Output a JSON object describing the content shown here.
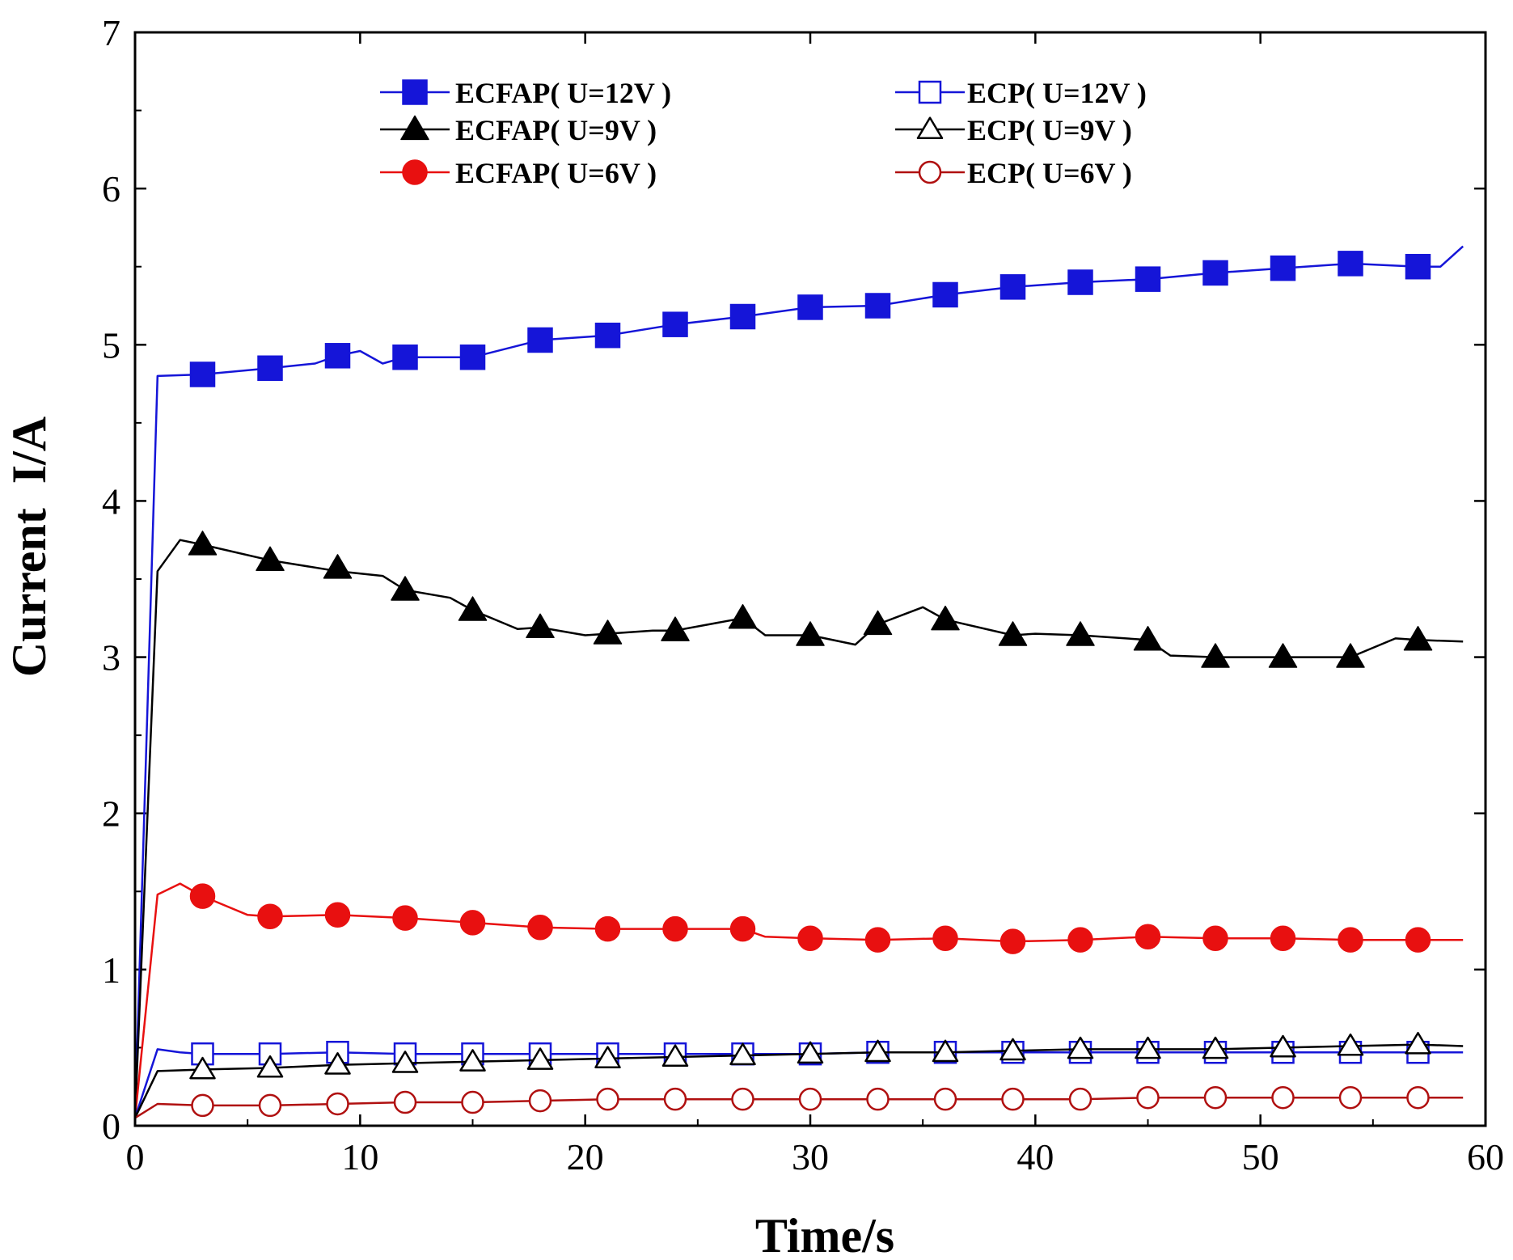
{
  "chart_data": {
    "type": "line",
    "title": "",
    "xlabel": "Time/s",
    "ylabel": "Current  I/A",
    "xlim": [
      0,
      60
    ],
    "ylim": [
      0,
      7
    ],
    "xticks": [
      0,
      10,
      20,
      30,
      40,
      50,
      60
    ],
    "yticks": [
      0,
      1,
      2,
      3,
      4,
      5,
      6,
      7
    ],
    "x_tick_labels": [
      "0",
      "10",
      "20",
      "30",
      "40",
      "50",
      "60"
    ],
    "y_tick_labels": [
      "0",
      "1",
      "2",
      "3",
      "4",
      "5",
      "6",
      "7"
    ],
    "grid": false,
    "legend_position": "top",
    "series": [
      {
        "name": "ECFAP( U=12V )",
        "color": "#1515d8",
        "marker": "square",
        "filled": true,
        "line": [
          [
            0,
            0.05
          ],
          [
            1,
            4.8
          ],
          [
            3,
            4.81
          ],
          [
            6,
            4.85
          ],
          [
            8,
            4.88
          ],
          [
            9,
            4.93
          ],
          [
            10,
            4.96
          ],
          [
            11,
            4.88
          ],
          [
            12,
            4.92
          ],
          [
            15,
            4.92
          ],
          [
            18,
            5.03
          ],
          [
            21,
            5.06
          ],
          [
            24,
            5.13
          ],
          [
            27,
            5.18
          ],
          [
            30,
            5.24
          ],
          [
            33,
            5.25
          ],
          [
            36,
            5.32
          ],
          [
            39,
            5.37
          ],
          [
            42,
            5.4
          ],
          [
            45,
            5.42
          ],
          [
            48,
            5.46
          ],
          [
            51,
            5.49
          ],
          [
            54,
            5.52
          ],
          [
            57,
            5.5
          ],
          [
            58,
            5.5
          ],
          [
            59,
            5.63
          ]
        ],
        "markers": [
          [
            3,
            4.81
          ],
          [
            6,
            4.85
          ],
          [
            9,
            4.93
          ],
          [
            12,
            4.92
          ],
          [
            15,
            4.92
          ],
          [
            18,
            5.03
          ],
          [
            21,
            5.06
          ],
          [
            24,
            5.13
          ],
          [
            27,
            5.18
          ],
          [
            30,
            5.24
          ],
          [
            33,
            5.25
          ],
          [
            36,
            5.32
          ],
          [
            39,
            5.37
          ],
          [
            42,
            5.4
          ],
          [
            45,
            5.42
          ],
          [
            48,
            5.46
          ],
          [
            51,
            5.49
          ],
          [
            54,
            5.52
          ],
          [
            57,
            5.5
          ]
        ]
      },
      {
        "name": "ECFAP( U=9V )",
        "color": "#000000",
        "marker": "triangle",
        "filled": true,
        "line": [
          [
            0,
            0.05
          ],
          [
            1,
            3.55
          ],
          [
            2,
            3.75
          ],
          [
            3,
            3.72
          ],
          [
            6,
            3.62
          ],
          [
            9,
            3.55
          ],
          [
            11,
            3.52
          ],
          [
            12,
            3.43
          ],
          [
            14,
            3.38
          ],
          [
            15,
            3.3
          ],
          [
            17,
            3.18
          ],
          [
            18,
            3.19
          ],
          [
            20,
            3.14
          ],
          [
            21,
            3.15
          ],
          [
            23,
            3.17
          ],
          [
            24,
            3.17
          ],
          [
            27,
            3.25
          ],
          [
            28,
            3.14
          ],
          [
            30,
            3.14
          ],
          [
            32,
            3.08
          ],
          [
            33,
            3.21
          ],
          [
            35,
            3.32
          ],
          [
            36,
            3.24
          ],
          [
            39,
            3.14
          ],
          [
            40,
            3.15
          ],
          [
            42,
            3.14
          ],
          [
            45,
            3.11
          ],
          [
            46,
            3.01
          ],
          [
            48,
            3.0
          ],
          [
            51,
            3.0
          ],
          [
            54,
            3.0
          ],
          [
            56,
            3.12
          ],
          [
            57,
            3.11
          ],
          [
            59,
            3.1
          ]
        ],
        "markers": [
          [
            3,
            3.72
          ],
          [
            6,
            3.62
          ],
          [
            9,
            3.57
          ],
          [
            12,
            3.43
          ],
          [
            15,
            3.3
          ],
          [
            18,
            3.19
          ],
          [
            21,
            3.15
          ],
          [
            24,
            3.17
          ],
          [
            27,
            3.25
          ],
          [
            30,
            3.14
          ],
          [
            33,
            3.21
          ],
          [
            36,
            3.24
          ],
          [
            39,
            3.14
          ],
          [
            42,
            3.14
          ],
          [
            45,
            3.11
          ],
          [
            48,
            3.0
          ],
          [
            51,
            3.0
          ],
          [
            54,
            3.0
          ],
          [
            57,
            3.11
          ]
        ]
      },
      {
        "name": "ECFAP( U=6V )",
        "color": "#e81010",
        "marker": "circle",
        "filled": true,
        "line": [
          [
            0,
            0.05
          ],
          [
            1,
            1.48
          ],
          [
            2,
            1.55
          ],
          [
            3,
            1.47
          ],
          [
            5,
            1.35
          ],
          [
            6,
            1.34
          ],
          [
            9,
            1.35
          ],
          [
            12,
            1.33
          ],
          [
            15,
            1.3
          ],
          [
            18,
            1.27
          ],
          [
            21,
            1.26
          ],
          [
            24,
            1.26
          ],
          [
            27,
            1.26
          ],
          [
            28,
            1.21
          ],
          [
            30,
            1.2
          ],
          [
            33,
            1.19
          ],
          [
            36,
            1.2
          ],
          [
            39,
            1.18
          ],
          [
            42,
            1.19
          ],
          [
            45,
            1.21
          ],
          [
            48,
            1.2
          ],
          [
            51,
            1.2
          ],
          [
            54,
            1.19
          ],
          [
            57,
            1.19
          ],
          [
            59,
            1.19
          ]
        ],
        "markers": [
          [
            3,
            1.47
          ],
          [
            6,
            1.34
          ],
          [
            9,
            1.35
          ],
          [
            12,
            1.33
          ],
          [
            15,
            1.3
          ],
          [
            18,
            1.27
          ],
          [
            21,
            1.26
          ],
          [
            24,
            1.26
          ],
          [
            27,
            1.26
          ],
          [
            30,
            1.2
          ],
          [
            33,
            1.19
          ],
          [
            36,
            1.2
          ],
          [
            39,
            1.18
          ],
          [
            42,
            1.19
          ],
          [
            45,
            1.21
          ],
          [
            48,
            1.2
          ],
          [
            51,
            1.2
          ],
          [
            54,
            1.19
          ],
          [
            57,
            1.19
          ]
        ]
      },
      {
        "name": "ECP( U=12V )",
        "color": "#1515d8",
        "marker": "square",
        "filled": false,
        "line": [
          [
            0,
            0.05
          ],
          [
            1,
            0.49
          ],
          [
            2,
            0.47
          ],
          [
            3,
            0.46
          ],
          [
            6,
            0.46
          ],
          [
            9,
            0.47
          ],
          [
            12,
            0.46
          ],
          [
            15,
            0.46
          ],
          [
            18,
            0.46
          ],
          [
            21,
            0.46
          ],
          [
            24,
            0.46
          ],
          [
            27,
            0.46
          ],
          [
            30,
            0.46
          ],
          [
            33,
            0.47
          ],
          [
            36,
            0.47
          ],
          [
            39,
            0.47
          ],
          [
            42,
            0.47
          ],
          [
            45,
            0.47
          ],
          [
            48,
            0.47
          ],
          [
            51,
            0.47
          ],
          [
            54,
            0.47
          ],
          [
            57,
            0.47
          ],
          [
            59,
            0.47
          ]
        ],
        "markers": [
          [
            3,
            0.46
          ],
          [
            6,
            0.46
          ],
          [
            9,
            0.47
          ],
          [
            12,
            0.46
          ],
          [
            15,
            0.46
          ],
          [
            18,
            0.46
          ],
          [
            21,
            0.46
          ],
          [
            24,
            0.46
          ],
          [
            27,
            0.46
          ],
          [
            30,
            0.46
          ],
          [
            33,
            0.47
          ],
          [
            36,
            0.47
          ],
          [
            39,
            0.47
          ],
          [
            42,
            0.47
          ],
          [
            45,
            0.47
          ],
          [
            48,
            0.47
          ],
          [
            51,
            0.47
          ],
          [
            54,
            0.47
          ],
          [
            57,
            0.47
          ]
        ]
      },
      {
        "name": "ECP( U=9V )",
        "color": "#000000",
        "marker": "triangle",
        "filled": false,
        "line": [
          [
            0,
            0.05
          ],
          [
            1,
            0.35
          ],
          [
            3,
            0.36
          ],
          [
            6,
            0.37
          ],
          [
            9,
            0.39
          ],
          [
            12,
            0.4
          ],
          [
            15,
            0.41
          ],
          [
            18,
            0.42
          ],
          [
            21,
            0.43
          ],
          [
            24,
            0.44
          ],
          [
            27,
            0.45
          ],
          [
            30,
            0.46
          ],
          [
            33,
            0.47
          ],
          [
            36,
            0.47
          ],
          [
            39,
            0.48
          ],
          [
            42,
            0.49
          ],
          [
            45,
            0.49
          ],
          [
            48,
            0.49
          ],
          [
            51,
            0.5
          ],
          [
            54,
            0.51
          ],
          [
            57,
            0.52
          ],
          [
            59,
            0.51
          ]
        ],
        "markers": [
          [
            3,
            0.36
          ],
          [
            6,
            0.37
          ],
          [
            9,
            0.39
          ],
          [
            12,
            0.4
          ],
          [
            15,
            0.41
          ],
          [
            18,
            0.42
          ],
          [
            21,
            0.43
          ],
          [
            24,
            0.44
          ],
          [
            27,
            0.45
          ],
          [
            30,
            0.46
          ],
          [
            33,
            0.47
          ],
          [
            36,
            0.47
          ],
          [
            39,
            0.48
          ],
          [
            42,
            0.49
          ],
          [
            45,
            0.49
          ],
          [
            48,
            0.49
          ],
          [
            51,
            0.5
          ],
          [
            54,
            0.51
          ],
          [
            57,
            0.52
          ]
        ]
      },
      {
        "name": "ECP( U=6V )",
        "color": "#b01010",
        "marker": "circle",
        "filled": false,
        "line": [
          [
            0,
            0.05
          ],
          [
            1,
            0.14
          ],
          [
            3,
            0.13
          ],
          [
            6,
            0.13
          ],
          [
            9,
            0.14
          ],
          [
            12,
            0.15
          ],
          [
            15,
            0.15
          ],
          [
            18,
            0.16
          ],
          [
            21,
            0.17
          ],
          [
            24,
            0.17
          ],
          [
            27,
            0.17
          ],
          [
            30,
            0.17
          ],
          [
            33,
            0.17
          ],
          [
            36,
            0.17
          ],
          [
            39,
            0.17
          ],
          [
            42,
            0.17
          ],
          [
            45,
            0.18
          ],
          [
            48,
            0.18
          ],
          [
            51,
            0.18
          ],
          [
            54,
            0.18
          ],
          [
            57,
            0.18
          ],
          [
            59,
            0.18
          ]
        ],
        "markers": [
          [
            3,
            0.13
          ],
          [
            6,
            0.13
          ],
          [
            9,
            0.14
          ],
          [
            12,
            0.15
          ],
          [
            15,
            0.15
          ],
          [
            18,
            0.16
          ],
          [
            21,
            0.17
          ],
          [
            24,
            0.17
          ],
          [
            27,
            0.17
          ],
          [
            30,
            0.17
          ],
          [
            33,
            0.17
          ],
          [
            36,
            0.17
          ],
          [
            39,
            0.17
          ],
          [
            42,
            0.17
          ],
          [
            45,
            0.18
          ],
          [
            48,
            0.18
          ],
          [
            51,
            0.18
          ],
          [
            54,
            0.18
          ],
          [
            57,
            0.18
          ]
        ]
      }
    ]
  }
}
